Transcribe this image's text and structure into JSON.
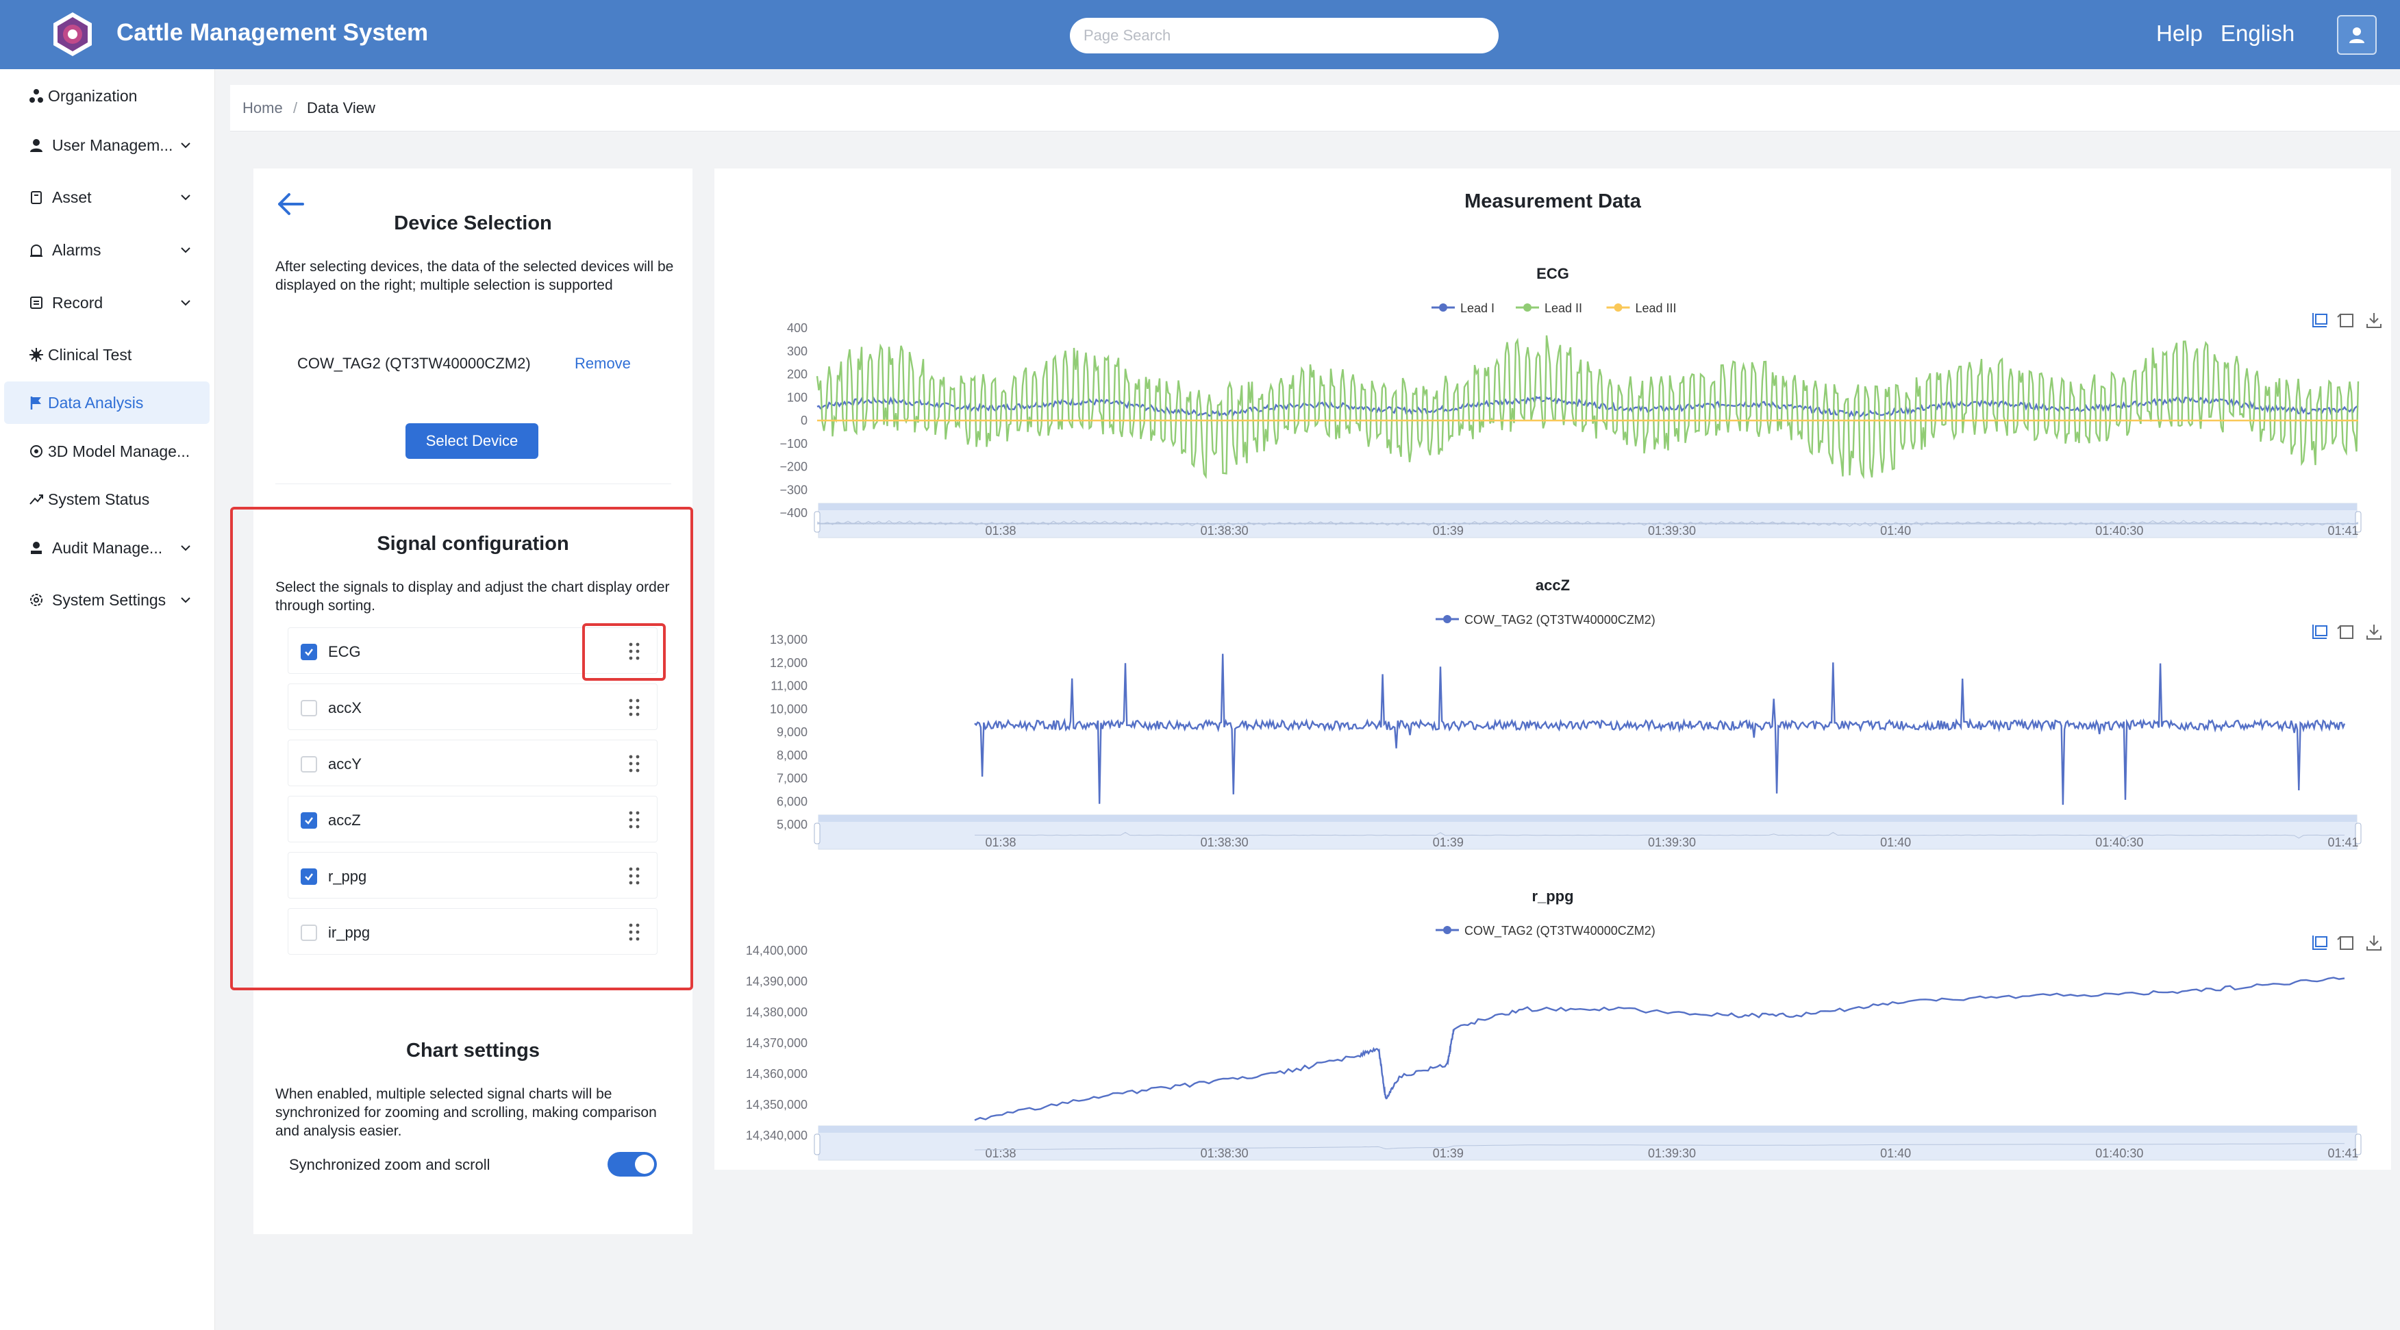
{
  "header": {
    "app_title": "Cattle Management System",
    "search_placeholder": "Page Search",
    "help_label": "Help",
    "language_label": "English",
    "brand_color": "#4a7fc7"
  },
  "sidebar": {
    "items": [
      {
        "label": "Organization",
        "icon": "organization-icon",
        "expandable": false
      },
      {
        "label": "User Managem...",
        "icon": "user-icon",
        "expandable": true
      },
      {
        "label": "Asset",
        "icon": "asset-icon",
        "expandable": true
      },
      {
        "label": "Alarms",
        "icon": "alarm-icon",
        "expandable": true
      },
      {
        "label": "Record",
        "icon": "record-icon",
        "expandable": true
      },
      {
        "label": "Clinical Test",
        "icon": "clinical-icon",
        "expandable": false
      },
      {
        "label": "Data Analysis",
        "icon": "flag-icon",
        "expandable": false,
        "active": true
      },
      {
        "label": "3D Model Manage...",
        "icon": "model-icon",
        "expandable": false
      },
      {
        "label": "System Status",
        "icon": "status-icon",
        "expandable": false
      },
      {
        "label": "Audit Manage...",
        "icon": "audit-icon",
        "expandable": true
      },
      {
        "label": "System Settings",
        "icon": "settings-icon",
        "expandable": true
      }
    ]
  },
  "breadcrumb": {
    "home": "Home",
    "separator": "/",
    "current": "Data View"
  },
  "device_selection": {
    "title": "Device Selection",
    "description": "After selecting devices, the data of the selected devices will be displayed on the right; multiple selection is supported",
    "device": "COW_TAG2 (QT3TW40000CZM2)",
    "remove_label": "Remove",
    "select_button": "Select Device"
  },
  "signal_configuration": {
    "title": "Signal configuration",
    "description": "Select the signals to display and adjust the chart display order through sorting.",
    "signals": [
      {
        "name": "ECG",
        "checked": true
      },
      {
        "name": "accX",
        "checked": false
      },
      {
        "name": "accY",
        "checked": false
      },
      {
        "name": "accZ",
        "checked": true
      },
      {
        "name": "r_ppg",
        "checked": true
      },
      {
        "name": "ir_ppg",
        "checked": false
      }
    ]
  },
  "chart_settings": {
    "title": "Chart settings",
    "description": "When enabled, multiple selected signal charts will be synchronized for zooming and scrolling, making comparison and analysis easier.",
    "sync_label": "Synchronized zoom and scroll",
    "sync_enabled": true
  },
  "measurement": {
    "title": "Measurement Data",
    "toolbar_icons": [
      "zoom-select-icon",
      "zoom-reset-icon",
      "download-icon"
    ]
  },
  "chart_data": [
    {
      "type": "line",
      "title": "ECG",
      "x_ticks": [
        "01:38",
        "01:38:30",
        "01:39",
        "01:39:30",
        "01:40",
        "01:40:30",
        "01:41"
      ],
      "y_ticks": [
        "400",
        "300",
        "200",
        "100",
        "0",
        "−100",
        "−200",
        "−300",
        "−400"
      ],
      "ylim": [
        -400,
        400
      ],
      "series": [
        {
          "name": "Lead I",
          "color": "#5470c6",
          "baseline": 60,
          "amplitude": 25
        },
        {
          "name": "Lead II",
          "color": "#91cc75",
          "baseline": 60,
          "amplitude": 250
        },
        {
          "name": "Lead III",
          "color": "#fac858",
          "baseline": 0,
          "amplitude": 0
        }
      ]
    },
    {
      "type": "line",
      "title": "accZ",
      "x_ticks": [
        "01:38",
        "01:38:30",
        "01:39",
        "01:39:30",
        "01:40",
        "01:40:30",
        "01:41"
      ],
      "y_ticks": [
        "13,000",
        "12,000",
        "11,000",
        "10,000",
        "9,000",
        "8,000",
        "7,000",
        "6,000",
        "5,000"
      ],
      "ylim": [
        5000,
        13000
      ],
      "series": [
        {
          "name": "COW_TAG2 (QT3TW40000CZM2)",
          "color": "#5470c6",
          "baseline": 9300,
          "amplitude": 400
        }
      ]
    },
    {
      "type": "line",
      "title": "r_ppg",
      "x_ticks": [
        "01:38",
        "01:38:30",
        "01:39",
        "01:39:30",
        "01:40",
        "01:40:30",
        "01:41"
      ],
      "y_ticks": [
        "14,400,000",
        "14,390,000",
        "14,380,000",
        "14,370,000",
        "14,360,000",
        "14,350,000",
        "14,340,000"
      ],
      "ylim": [
        14340000,
        14400000
      ],
      "series": [
        {
          "name": "COW_TAG2 (QT3TW40000CZM2)",
          "color": "#5470c6",
          "points": [
            [
              0.0,
              14345000
            ],
            [
              0.08,
              14352000
            ],
            [
              0.15,
              14356000
            ],
            [
              0.22,
              14360000
            ],
            [
              0.28,
              14366000
            ],
            [
              0.295,
              14368000
            ],
            [
              0.3,
              14352000
            ],
            [
              0.31,
              14359000
            ],
            [
              0.345,
              14363000
            ],
            [
              0.35,
              14375000
            ],
            [
              0.4,
              14381000
            ],
            [
              0.47,
              14381000
            ],
            [
              0.55,
              14379000
            ],
            [
              0.6,
              14379000
            ],
            [
              0.67,
              14383000
            ],
            [
              0.75,
              14385000
            ],
            [
              0.85,
              14386000
            ],
            [
              0.92,
              14388000
            ],
            [
              1.0,
              14391000
            ]
          ]
        }
      ]
    }
  ]
}
